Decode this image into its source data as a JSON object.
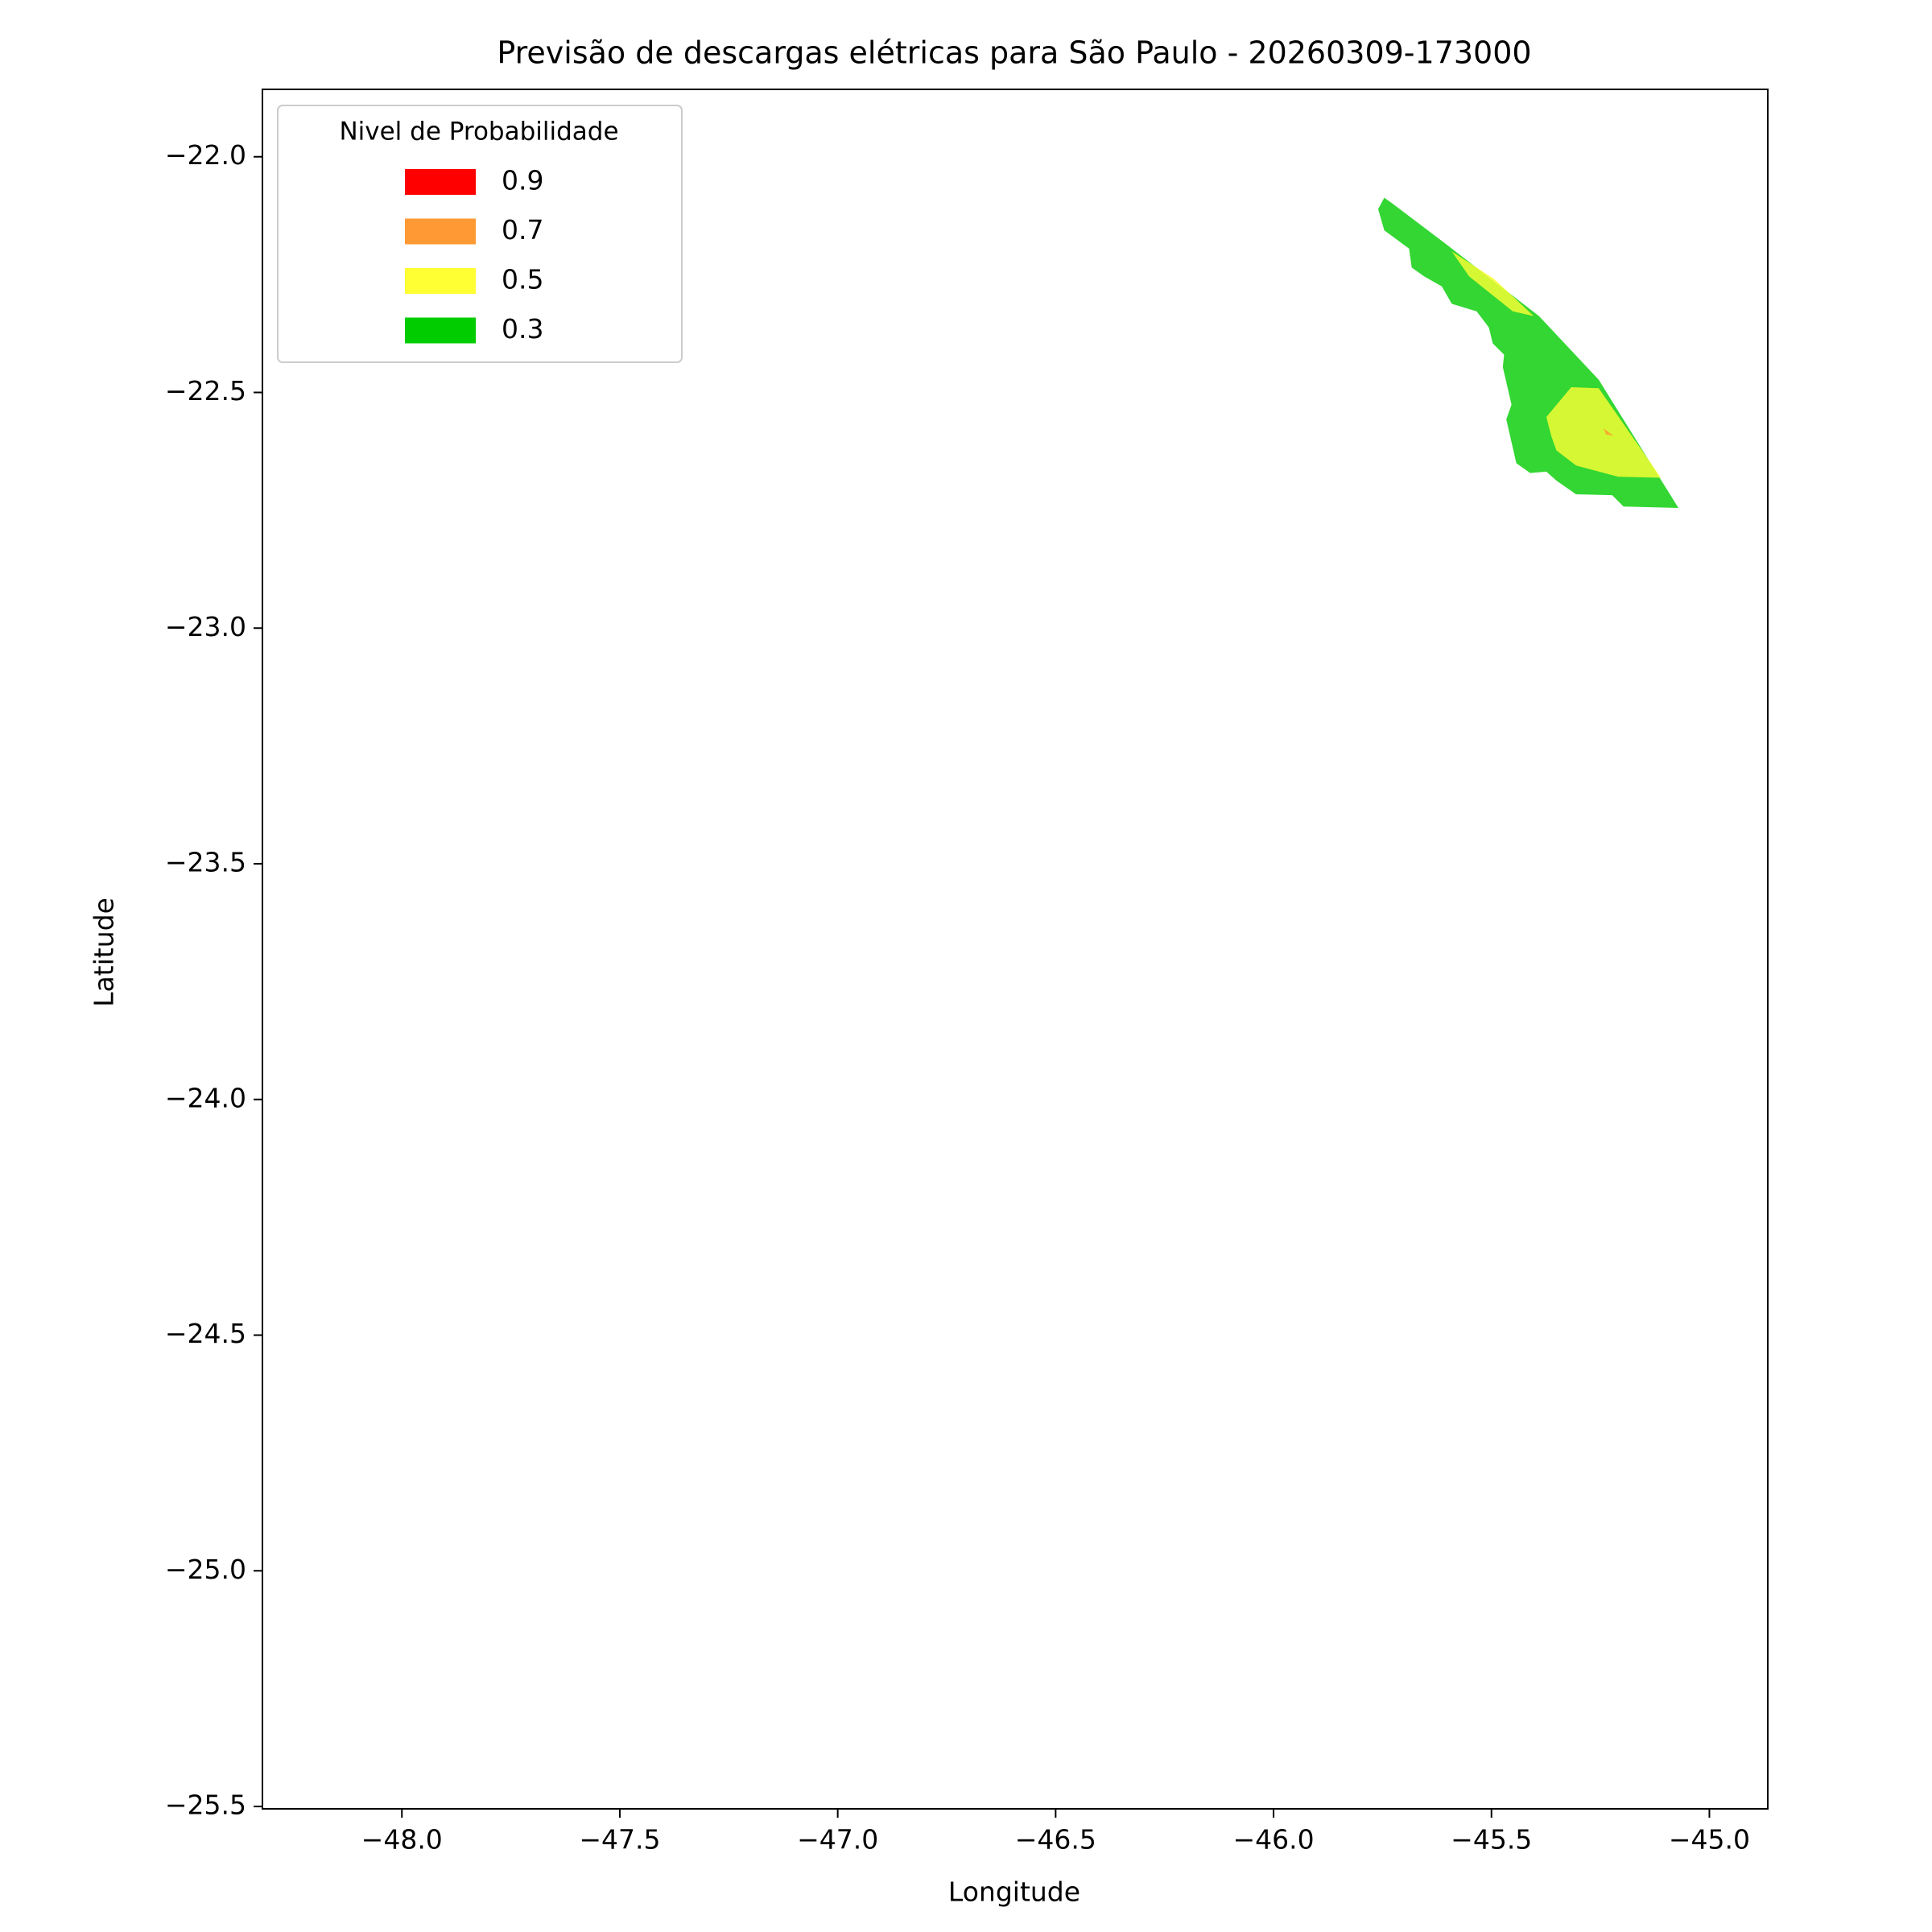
{
  "chart_data": {
    "type": "contour",
    "title": "Previsão de descargas elétricas para São Paulo - 20260309-173000",
    "xlabel": "Longitude",
    "ylabel": "Latitude",
    "xlim": [
      -48.32,
      -44.866
    ],
    "ylim": [
      -25.505,
      -21.857
    ],
    "xticks": [
      {
        "value": -48.0,
        "label": "−48.0"
      },
      {
        "value": -47.5,
        "label": "−47.5"
      },
      {
        "value": -47.0,
        "label": "−47.0"
      },
      {
        "value": -46.5,
        "label": "−46.5"
      },
      {
        "value": -46.0,
        "label": "−46.0"
      },
      {
        "value": -45.5,
        "label": "−45.5"
      },
      {
        "value": -45.0,
        "label": "−45.0"
      }
    ],
    "yticks": [
      {
        "value": -22.0,
        "label": "−22.0"
      },
      {
        "value": -22.5,
        "label": "−22.5"
      },
      {
        "value": -23.0,
        "label": "−23.0"
      },
      {
        "value": -23.5,
        "label": "−23.5"
      },
      {
        "value": -24.0,
        "label": "−24.0"
      },
      {
        "value": -24.5,
        "label": "−24.5"
      },
      {
        "value": -25.0,
        "label": "−25.0"
      },
      {
        "value": -25.5,
        "label": "−25.5"
      }
    ],
    "legend": {
      "title": "Nivel de Probabilidade",
      "loc": "upper left"
    },
    "alpha": 0.8,
    "series": [
      {
        "name": "0.9",
        "color": "#ff0000",
        "polygons": []
      },
      {
        "name": "0.7",
        "color": "#ff9933",
        "polygons": [
          {
            "x": [
              -45.243,
              -45.22,
              -45.237
            ],
            "y": [
              -22.576,
              -22.592,
              -22.589
            ]
          }
        ]
      },
      {
        "name": "0.5",
        "color": "#ffff33",
        "polygons": [
          {
            "x": [
              -45.591,
              -45.494,
              -45.403,
              -45.451,
              -45.551
            ],
            "y": [
              -22.201,
              -22.259,
              -22.338,
              -22.328,
              -22.254
            ]
          },
          {
            "x": [
              -45.374,
              -45.317,
              -45.254,
              -45.111,
              -45.209,
              -45.306,
              -45.351,
              -45.363
            ],
            "y": [
              -22.552,
              -22.489,
              -22.491,
              -22.681,
              -22.679,
              -22.655,
              -22.623,
              -22.592
            ]
          }
        ]
      },
      {
        "name": "0.3",
        "color": "#00cc00",
        "polygons": [
          {
            "x": [
              -45.746,
              -45.76,
              -45.746,
              -45.689,
              -45.683,
              -45.654,
              -45.614,
              -45.591,
              -45.534,
              -45.506,
              -45.497,
              -45.471,
              -45.474,
              -45.454,
              -45.466,
              -45.443,
              -45.411,
              -45.374,
              -45.351,
              -45.306,
              -45.223,
              -45.197,
              -45.071,
              -45.254,
              -45.391,
              -45.609,
              -45.729
            ],
            "y": [
              -22.087,
              -22.111,
              -22.156,
              -22.195,
              -22.235,
              -22.254,
              -22.275,
              -22.312,
              -22.328,
              -22.362,
              -22.396,
              -22.42,
              -22.446,
              -22.526,
              -22.557,
              -22.65,
              -22.671,
              -22.668,
              -22.687,
              -22.716,
              -22.718,
              -22.742,
              -22.745,
              -22.473,
              -22.338,
              -22.182,
              -22.098
            ]
          }
        ]
      }
    ]
  }
}
